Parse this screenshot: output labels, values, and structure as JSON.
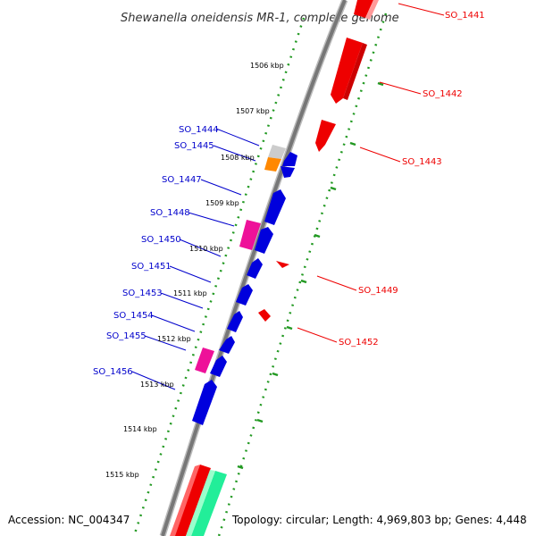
{
  "title": "Shewanella oneidensis MR-1, complete genome",
  "footer": {
    "accession": "Accession: NC_004347",
    "summary": "Topology: circular; Length: 4,969,803 bp; Genes: 4,448"
  },
  "colors": {
    "forward_gene": "#0000dd",
    "reverse_gene": "#ee0000",
    "pink_feature": "#ee1199",
    "orange_feature": "#ff8800",
    "grey_feature": "#cccccc",
    "green_feature": "#22ee99",
    "tick": "#229922",
    "backbone": "#777777"
  },
  "kbp_ticks": [
    "1506 kbp",
    "1507 kbp",
    "1508 kbp",
    "1509 kbp",
    "1510 kbp",
    "1511 kbp",
    "1512 kbp",
    "1513 kbp",
    "1514 kbp",
    "1515 kbp"
  ],
  "labels_left": [
    "SO_1444",
    "SO_1445",
    "SO_1447",
    "SO_1448",
    "SO_1450",
    "SO_1451",
    "SO_1453",
    "SO_1454",
    "SO_1455",
    "SO_1456"
  ],
  "labels_right": [
    "SO_1441",
    "SO_1442",
    "SO_1443",
    "SO_1449",
    "SO_1452"
  ]
}
